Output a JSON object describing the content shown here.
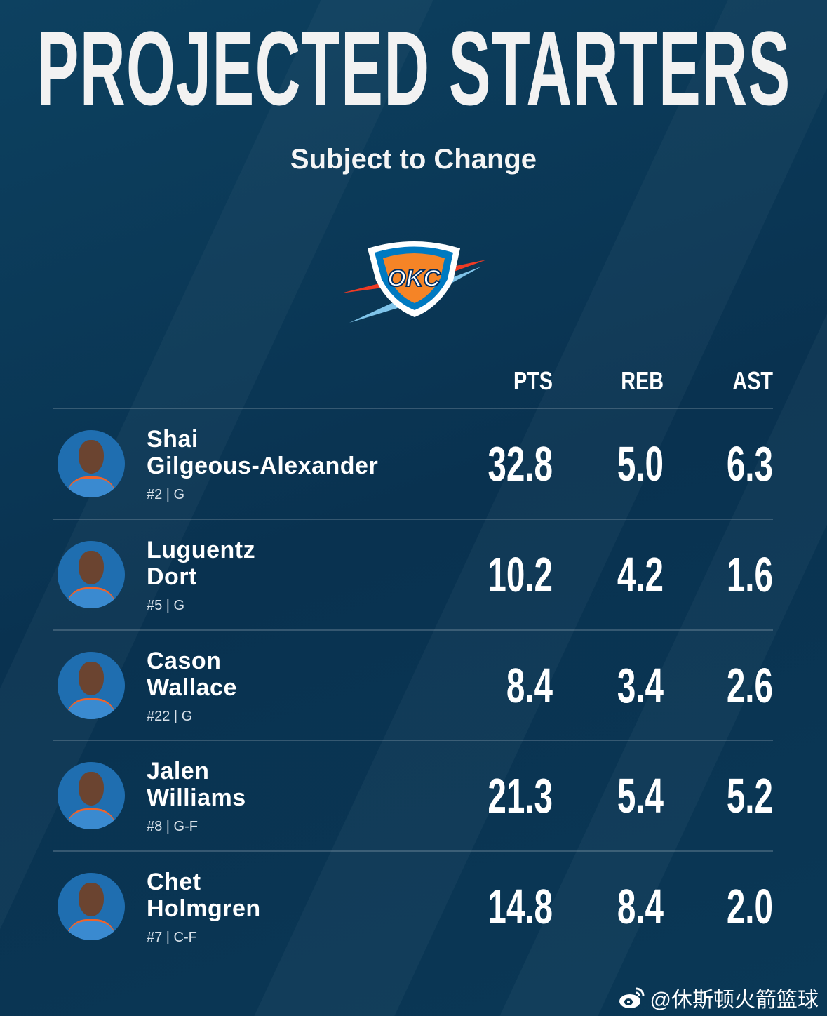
{
  "title": "PROJECTED STARTERS",
  "subtitle": "Subject to Change",
  "logo_text": "OKC",
  "headers": [
    "PTS",
    "REB",
    "AST"
  ],
  "players": [
    {
      "first": "Shai",
      "last": "Gilgeous-Alexander",
      "meta": "#2 | G",
      "pts": "32.8",
      "reb": "5.0",
      "ast": "6.3"
    },
    {
      "first": "Luguentz",
      "last": "Dort",
      "meta": "#5 | G",
      "pts": "10.2",
      "reb": "4.2",
      "ast": "1.6"
    },
    {
      "first": "Cason",
      "last": "Wallace",
      "meta": "#22 | G",
      "pts": "8.4",
      "reb": "3.4",
      "ast": "2.6"
    },
    {
      "first": "Jalen",
      "last": "Williams",
      "meta": "#8 | G-F",
      "pts": "21.3",
      "reb": "5.4",
      "ast": "5.2"
    },
    {
      "first": "Chet",
      "last": "Holmgren",
      "meta": "#7 | C-F",
      "pts": "14.8",
      "reb": "8.4",
      "ast": "2.0"
    }
  ],
  "watermark": "@休斯顿火箭篮球",
  "colors": {
    "background": "#0a3652",
    "okc_blue": "#007ac1",
    "okc_orange": "#ef3b24"
  }
}
